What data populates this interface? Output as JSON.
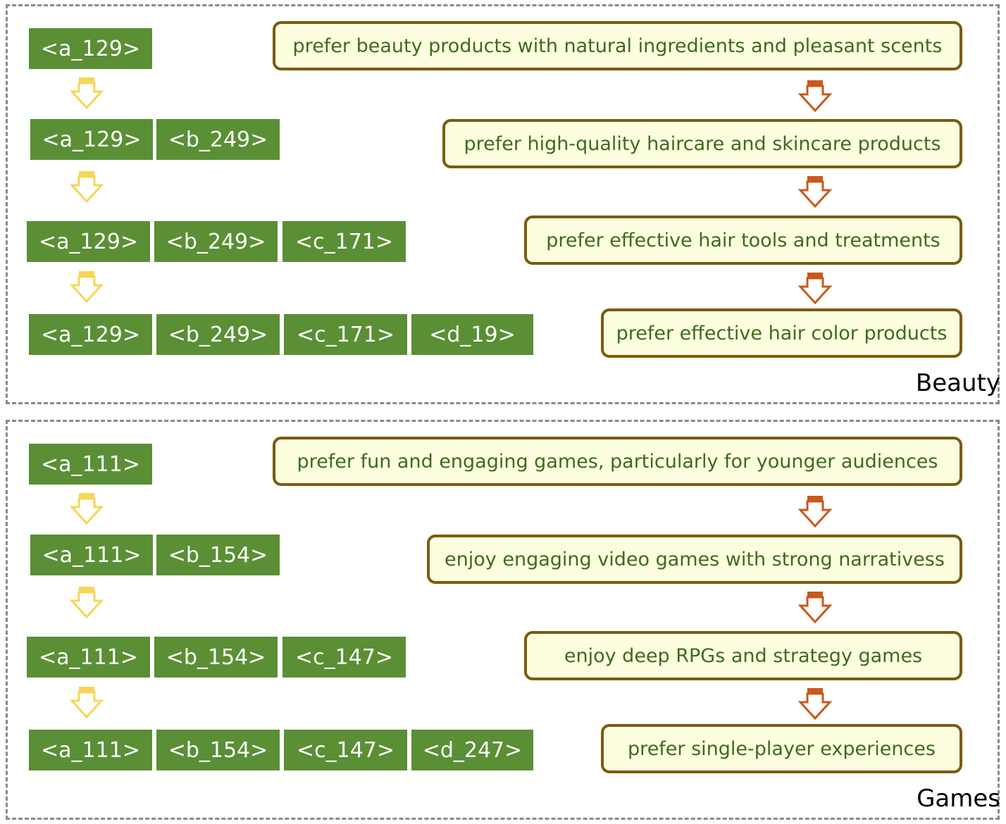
{
  "panels": [
    {
      "title": "Beauty",
      "rows": [
        [
          "<a_129>"
        ],
        [
          "<a_129>",
          "<b_249>"
        ],
        [
          "<a_129>",
          "<b_249>",
          "<c_171>"
        ],
        [
          "<a_129>",
          "<b_249>",
          "<c_171>",
          "<d_19>"
        ]
      ],
      "descriptions": [
        "prefer beauty products with natural ingredients and pleasant scents",
        "prefer high-quality haircare and skincare products",
        "prefer effective hair tools and treatments",
        "prefer effective hair color products"
      ]
    },
    {
      "title": "Games",
      "rows": [
        [
          "<a_111>"
        ],
        [
          "<a_111>",
          "<b_154>"
        ],
        [
          "<a_111>",
          "<b_154>",
          "<c_147>"
        ],
        [
          "<a_111>",
          "<b_154>",
          "<c_147>",
          "<d_247>"
        ]
      ],
      "descriptions": [
        "prefer fun and engaging games, particularly for younger audiences",
        "enjoy engaging video games with strong narrativess",
        "enjoy deep RPGs and strategy games",
        "prefer single-player experiences"
      ]
    }
  ],
  "colors": {
    "token_bg": "#5a8f35",
    "token_text": "#ffffff",
    "desc_bg": "#fdfde0",
    "desc_border": "#7a5c0f",
    "desc_text": "#3d6b1c",
    "arrow_left": "#f7d558",
    "arrow_right": "#c8591a"
  }
}
